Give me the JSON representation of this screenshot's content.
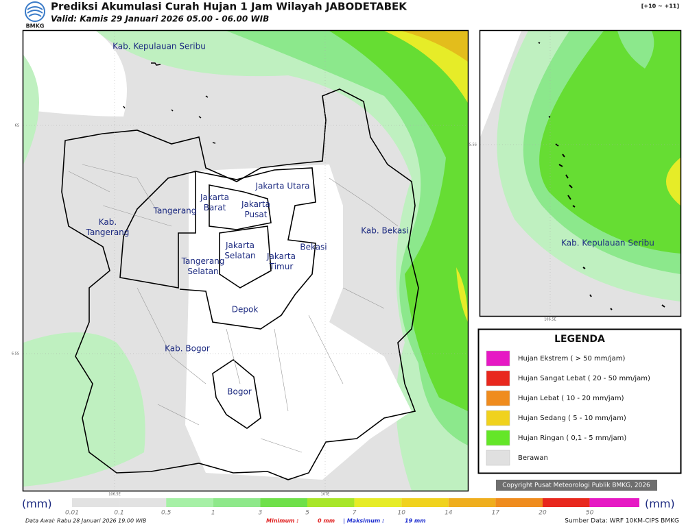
{
  "header": {
    "logo_text": "BMKG",
    "title": "Prediksi Akumulasi Curah Hujan 1 Jam Wilayah JABODETABEK",
    "valid": "Valid: Kamis 29 Januari 2026 05.00 - 06.00 WIB",
    "range": "[+10 ~ +11]"
  },
  "map": {
    "axis_labels": {
      "lat_6": "6S",
      "lat_65": "6.5S",
      "lon_1065": "106.5E",
      "lon_107": "107E"
    },
    "regions": [
      {
        "lines": [
          "Kab. Kepulauan Seribu"
        ]
      },
      {
        "lines": [
          "Kab.",
          "Tangerang"
        ]
      },
      {
        "lines": [
          "Tangerang"
        ]
      },
      {
        "lines": [
          "Jakarta",
          "Barat"
        ]
      },
      {
        "lines": [
          "Jakarta Utara"
        ]
      },
      {
        "lines": [
          "Jakarta",
          "Pusat"
        ]
      },
      {
        "lines": [
          "Jakarta",
          "Selatan"
        ]
      },
      {
        "lines": [
          "Jakarta",
          "Timur"
        ]
      },
      {
        "lines": [
          "Bekasi"
        ]
      },
      {
        "lines": [
          "Kab. Bekasi"
        ]
      },
      {
        "lines": [
          "Tangerang",
          "Selatan"
        ]
      },
      {
        "lines": [
          "Depok"
        ]
      },
      {
        "lines": [
          "Kab. Bogor"
        ]
      },
      {
        "lines": [
          "Bogor"
        ]
      }
    ]
  },
  "inset": {
    "region": "Kab. Kepulauan Seribu",
    "lat": "5.5S",
    "lon": "106.5E"
  },
  "legend": {
    "title": "LEGENDA",
    "items": [
      {
        "label": "Hujan Ekstrem ( > 50 mm/jam)",
        "color": "#e619c4"
      },
      {
        "label": "Hujan Sangat Lebat ( 20 - 50 mm/jam)",
        "color": "#e8281e"
      },
      {
        "label": "Hujan Lebat ( 10 - 20 mm/jam)",
        "color": "#ef8c1e"
      },
      {
        "label": "Hujan Sedang ( 5 - 10 mm/jam)",
        "color": "#f0d21e"
      },
      {
        "label": "Hujan Ringan ( 0,1 - 5 mm/jam)",
        "color": "#64e628"
      },
      {
        "label": "Berawan",
        "color": "#e0e0e0"
      }
    ]
  },
  "copyright": "Copyright Pusat Meteorologi Publik BMKG, 2026",
  "colorbar": {
    "unit": "(mm)",
    "ticks": [
      0.01,
      0.1,
      0.5,
      1,
      3,
      5,
      7,
      10,
      14,
      17,
      20,
      50
    ],
    "colors": [
      "#e2e2e2",
      "#e2e2e2",
      "#a6f0a6",
      "#8ee88a",
      "#6fe04a",
      "#a8e62a",
      "#e6ec28",
      "#f0d21e",
      "#efae1e",
      "#ef8c1e",
      "#e8281e",
      "#e619c4"
    ]
  },
  "footer": {
    "data_awal": "Data Awal: Rabu 28 Januari 2026 19.00 WIB",
    "min_label": "Minimum :",
    "min_value": "0 mm",
    "max_label": "| Maksimum :",
    "max_value": "19 mm",
    "source": "Sumber Data: WRF 10KM-CIPS BMKG"
  }
}
